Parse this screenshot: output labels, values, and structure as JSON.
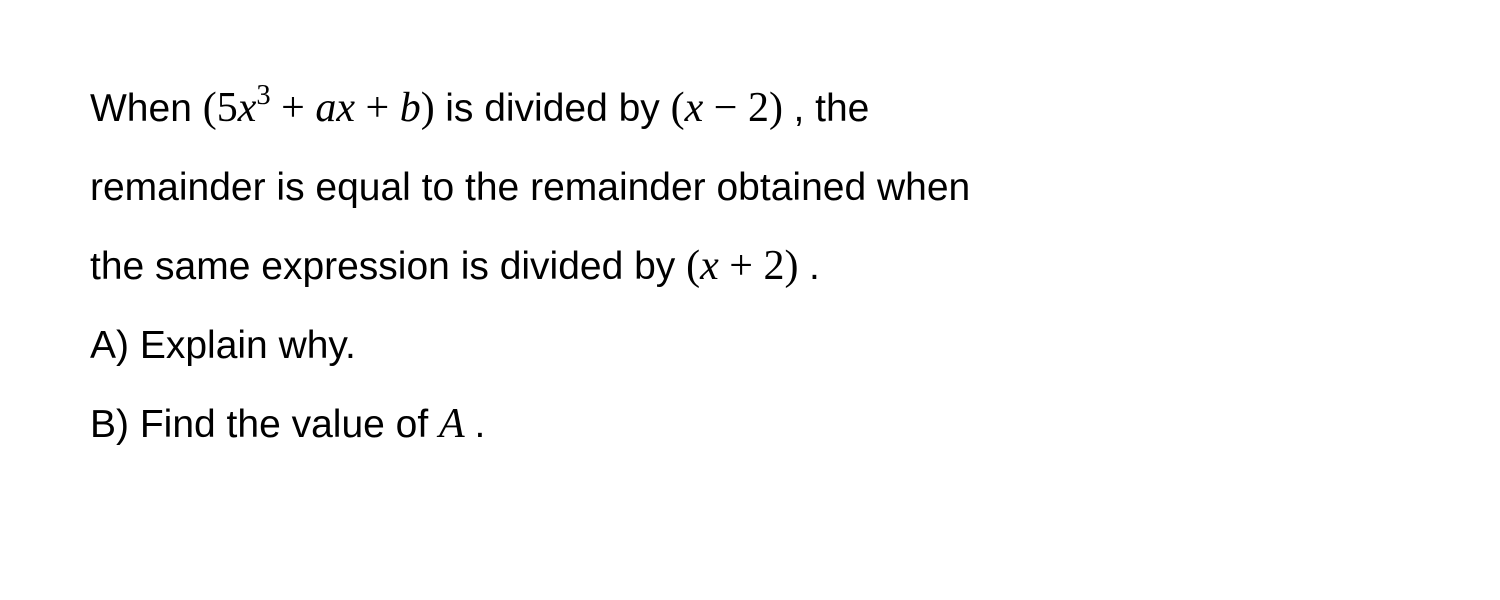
{
  "problem": {
    "line1_text": {
      "prefix": "When ",
      "expr1_open": " (5",
      "expr1_var": "x",
      "expr1_exp": "3",
      "expr1_mid": " + ",
      "expr1_a": "a",
      "expr1_x2": "x",
      "expr1_plus": " + ",
      "expr1_b": "b",
      "expr1_close": ") ",
      "mid": " is divided by ",
      "expr2_open": " (",
      "expr2_x": "x",
      "expr2_rest": " − 2) ",
      "suffix": ", the"
    },
    "line2_text": "remainder is equal to the remainder obtained when",
    "line3_text": {
      "prefix": "the same expression is divided by ",
      "expr_open": " (",
      "expr_x": "x",
      "expr_rest": " + 2) ",
      "suffix": "."
    },
    "partA": {
      "label": "A) Explain why."
    },
    "partB": {
      "prefix": "B) Find the value of ",
      "var": " A ",
      "suffix": "."
    }
  },
  "styling": {
    "background_color": "#ffffff",
    "text_color": "#000000",
    "body_fontsize": 39,
    "math_fontsize": 42,
    "line_height": 1.85,
    "body_font": "Arial, Helvetica, sans-serif",
    "math_font": "Times New Roman, serif"
  }
}
